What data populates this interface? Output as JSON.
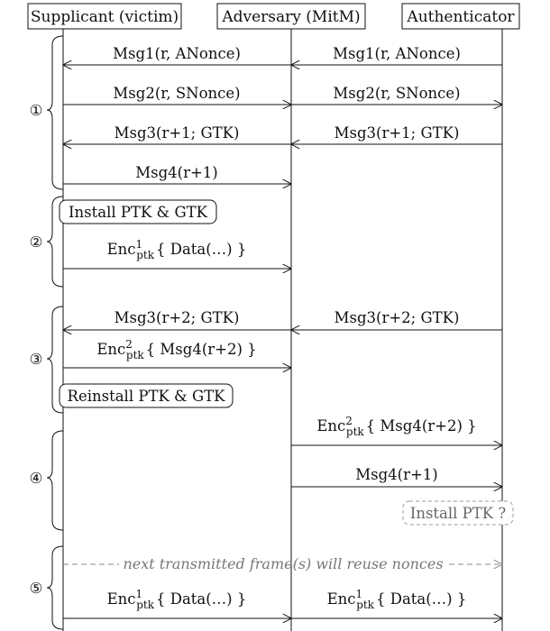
{
  "participants": {
    "supplicant": "Supplicant (victim)",
    "adversary": "Adversary (MitM)",
    "authenticator": "Authenticator"
  },
  "phases": [
    "①",
    "②",
    "③",
    "④",
    "⑤"
  ],
  "messages": {
    "msg1": "Msg1(r, ANonce)",
    "msg2": "Msg2(r, SNonce)",
    "msg3": "Msg3(r+1; GTK)",
    "msg4": "Msg4(r+1)",
    "msg3b": "Msg3(r+2; GTK)",
    "msg4b": "Msg4(r+1)"
  },
  "enc": {
    "base": "Enc",
    "sub": "ptk",
    "sup1": "1",
    "sup2": "2",
    "data": "{ Data(…) }",
    "msg4r2": "{ Msg4(r+2) }"
  },
  "actions": {
    "install": "Install PTK & GTK",
    "reinstall": "Reinstall PTK & GTK",
    "install_ptk": "Install PTK ?"
  },
  "note": "next transmitted frame(s) will reuse nonces"
}
